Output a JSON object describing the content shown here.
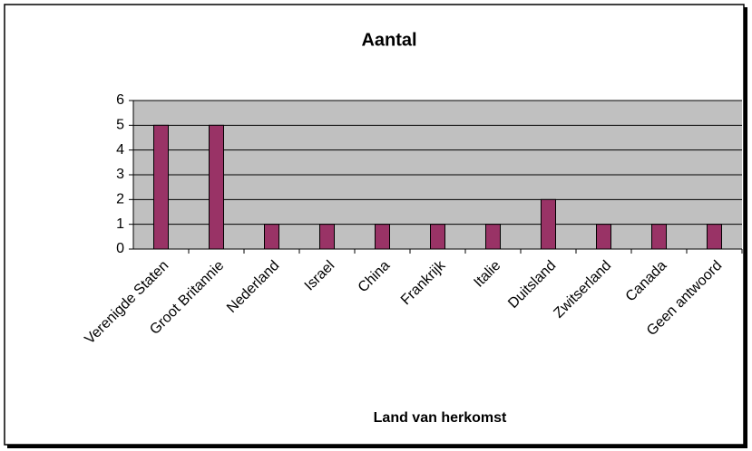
{
  "chart_data": {
    "type": "bar",
    "title": "Aantal",
    "x_label": "Land van herkomst",
    "categories": [
      "Verenigde Staten",
      "Groot Britannie",
      "Nederland",
      "Israel",
      "China",
      "Frankrijk",
      "Italie",
      "Duitsland",
      "Zwitserland",
      "Canada",
      "Geen antwoord"
    ],
    "values": [
      5,
      5,
      1,
      1,
      1,
      1,
      1,
      2,
      1,
      1,
      1
    ],
    "color": "#993366",
    "ylim": [
      0,
      6
    ],
    "yticks": [
      0,
      1,
      2,
      3,
      4,
      5,
      6
    ],
    "grid": true
  }
}
